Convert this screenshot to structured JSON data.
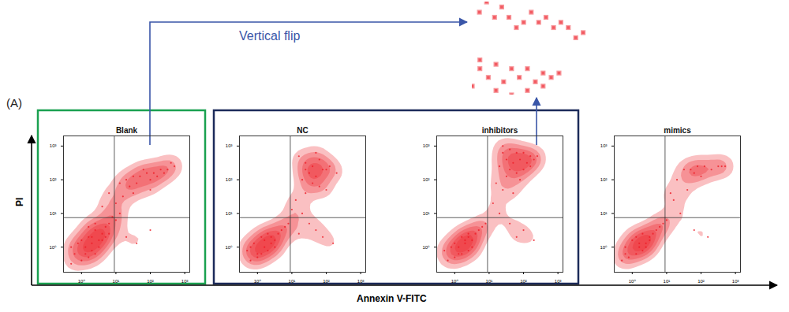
{
  "figure": {
    "label": "(A)",
    "x_label": "Annexin V-FITC",
    "y_label": "PI",
    "annotation": {
      "text": "Vertical flip",
      "color": "#3a56a8"
    },
    "groups": [
      {
        "panels": [
          0
        ],
        "color": "#1aa150"
      },
      {
        "panels": [
          1,
          2
        ],
        "color": "#1c2b5a"
      }
    ],
    "zooms": [
      {
        "panel": 0,
        "xlim": [
          16,
          631
        ],
        "ylim": [
          63,
          400
        ]
      },
      {
        "panel": 2,
        "xlim": [
          20,
          631
        ],
        "ylim": [
          158,
          1260
        ]
      }
    ]
  },
  "chart_data": [
    {
      "type": "scatter",
      "title": "Blank",
      "color": "#ee1c25",
      "log": true,
      "xlim": [
        0.3,
        1400
      ],
      "ylim": [
        0.18,
        2000
      ],
      "xticks": [
        {
          "value": 1,
          "label": "10⁰"
        },
        {
          "value": 10,
          "label": "10¹"
        },
        {
          "value": 100,
          "label": "10²"
        },
        {
          "value": 1000,
          "label": "10³"
        }
      ],
      "yticks": [
        {
          "value": 1,
          "label": "10⁰"
        },
        {
          "value": 10,
          "label": "10¹"
        },
        {
          "value": 100,
          "label": "10²"
        },
        {
          "value": 1000,
          "label": "10³"
        }
      ],
      "quadrant": {
        "x": 9,
        "y": 7.5
      },
      "x": [
        0.5,
        1,
        1.6,
        2.5,
        0.63,
        1.3,
        2,
        3.2,
        1,
        1.6,
        4,
        5,
        2.5,
        6.3,
        7.9,
        10,
        2,
        0.79,
        3.2,
        4,
        1.3,
        2,
        5,
        2.5,
        13,
        1.6,
        0.5,
        6.3,
        20,
        32,
        50,
        79,
        126,
        200,
        316,
        501,
        40,
        100,
        158,
        251,
        25,
        63,
        398,
        16,
        10,
        4,
        32,
        13,
        100,
        6.3,
        20,
        40,
        100
      ],
      "values": [
        0.32,
        0.4,
        0.5,
        0.63,
        0.63,
        1,
        1.3,
        1.6,
        1.6,
        2,
        2.5,
        4,
        3.2,
        5,
        7.9,
        6.3,
        0.79,
        1.3,
        1,
        1.6,
        0.63,
        2,
        2,
        5,
        10,
        4,
        1,
        2.5,
        100,
        126,
        126,
        158,
        158,
        200,
        200,
        251,
        79,
        100,
        126,
        158,
        63,
        200,
        316,
        32,
        20,
        16,
        40,
        79,
        50,
        40,
        2,
        1.3,
        3.2
      ]
    },
    {
      "type": "scatter",
      "title": "NC",
      "color": "#ee1c25",
      "log": true,
      "xlim": [
        0.3,
        1400
      ],
      "ylim": [
        0.18,
        2000
      ],
      "xticks": [
        {
          "value": 1,
          "label": "10⁰"
        },
        {
          "value": 10,
          "label": "10¹"
        },
        {
          "value": 100,
          "label": "10²"
        },
        {
          "value": 1000,
          "label": "10³"
        }
      ],
      "yticks": [
        {
          "value": 1,
          "label": "10⁰"
        },
        {
          "value": 10,
          "label": "10¹"
        },
        {
          "value": 100,
          "label": "10²"
        },
        {
          "value": 1000,
          "label": "10³"
        }
      ],
      "quadrant": {
        "x": 9,
        "y": 7.5
      },
      "x": [
        0.63,
        1,
        1.3,
        2,
        0.5,
        1.6,
        2.5,
        3.2,
        0.79,
        1.3,
        4,
        5,
        2,
        6.3,
        7.9,
        1,
        3.2,
        1.6,
        2.5,
        0.63,
        16,
        25,
        40,
        63,
        100,
        32,
        50,
        79,
        126,
        20,
        40,
        63,
        200,
        25,
        100,
        13,
        20,
        32,
        50,
        79,
        158,
        16,
        10,
        25,
        50
      ],
      "values": [
        0.4,
        0.5,
        0.63,
        0.79,
        0.79,
        1,
        1.3,
        1.6,
        1.3,
        2,
        2.5,
        3.2,
        2.5,
        4,
        5,
        0.63,
        1,
        1.6,
        2,
        1,
        500,
        316,
        251,
        398,
        200,
        158,
        126,
        200,
        251,
        100,
        79,
        63,
        158,
        40,
        50,
        25,
        10,
        5,
        3.2,
        2,
        1.3,
        2.5,
        13,
        200,
        631
      ]
    },
    {
      "type": "scatter",
      "title": "inhibitors",
      "color": "#ee1c25",
      "log": true,
      "xlim": [
        0.3,
        1400
      ],
      "ylim": [
        0.18,
        2000
      ],
      "xticks": [
        {
          "value": 1,
          "label": "10⁰"
        },
        {
          "value": 10,
          "label": "10¹"
        },
        {
          "value": 100,
          "label": "10²"
        },
        {
          "value": 1000,
          "label": "10³"
        }
      ],
      "yticks": [
        {
          "value": 1,
          "label": "10⁰"
        },
        {
          "value": 10,
          "label": "10¹"
        },
        {
          "value": 100,
          "label": "10²"
        },
        {
          "value": 1000,
          "label": "10³"
        }
      ],
      "quadrant": {
        "x": 9,
        "y": 7.5
      },
      "x": [
        0.63,
        1,
        1.6,
        2.5,
        0.5,
        1.3,
        2,
        3.2,
        1,
        1.6,
        4,
        5,
        2.5,
        6.3,
        7.9,
        1.3,
        3.2,
        2,
        2.5,
        0.79,
        25,
        40,
        63,
        100,
        158,
        251,
        32,
        50,
        79,
        126,
        200,
        20,
        40,
        63,
        100,
        158,
        32,
        79,
        16,
        25,
        50,
        13,
        20,
        40,
        100,
        63,
        200,
        25
      ],
      "values": [
        0.4,
        0.5,
        0.63,
        0.79,
        0.79,
        1,
        1.3,
        1.6,
        1.3,
        2,
        2.5,
        3.2,
        2.5,
        4,
        5,
        0.63,
        1,
        1.6,
        2,
        1,
        1000,
        794,
        631,
        631,
        501,
        501,
        398,
        316,
        398,
        316,
        398,
        251,
        200,
        158,
        200,
        251,
        126,
        100,
        79,
        50,
        40,
        20,
        10,
        5,
        3.2,
        2,
        1.6,
        631
      ]
    },
    {
      "type": "scatter",
      "title": "mimics",
      "color": "#ee1c25",
      "log": true,
      "xlim": [
        0.3,
        1400
      ],
      "ylim": [
        0.18,
        2000
      ],
      "xticks": [
        {
          "value": 1,
          "label": "10⁰"
        },
        {
          "value": 10,
          "label": "10¹"
        },
        {
          "value": 100,
          "label": "10²"
        },
        {
          "value": 1000,
          "label": "10³"
        }
      ],
      "yticks": [
        {
          "value": 1,
          "label": "10⁰"
        },
        {
          "value": 10,
          "label": "10¹"
        },
        {
          "value": 100,
          "label": "10²"
        },
        {
          "value": 1000,
          "label": "10³"
        }
      ],
      "quadrant": {
        "x": 9,
        "y": 7.5
      },
      "x": [
        0.5,
        0.79,
        1.3,
        2,
        0.63,
        1.6,
        2.5,
        3.2,
        1,
        1.3,
        4,
        5,
        2,
        6.3,
        7.9,
        10,
        2.5,
        1.6,
        0.63,
        3.2,
        32,
        50,
        79,
        126,
        200,
        316,
        398,
        501,
        63,
        100,
        20,
        40,
        16,
        25,
        13,
        63,
        158
      ],
      "values": [
        0.4,
        0.5,
        0.63,
        0.79,
        1,
        1,
        1.3,
        1.6,
        1.6,
        2,
        2.5,
        3.2,
        2.5,
        4,
        5,
        6.3,
        1,
        1.3,
        0.63,
        2,
        200,
        200,
        251,
        251,
        200,
        251,
        251,
        251,
        158,
        126,
        100,
        50,
        25,
        10,
        40,
        3.2,
        2
      ]
    }
  ]
}
